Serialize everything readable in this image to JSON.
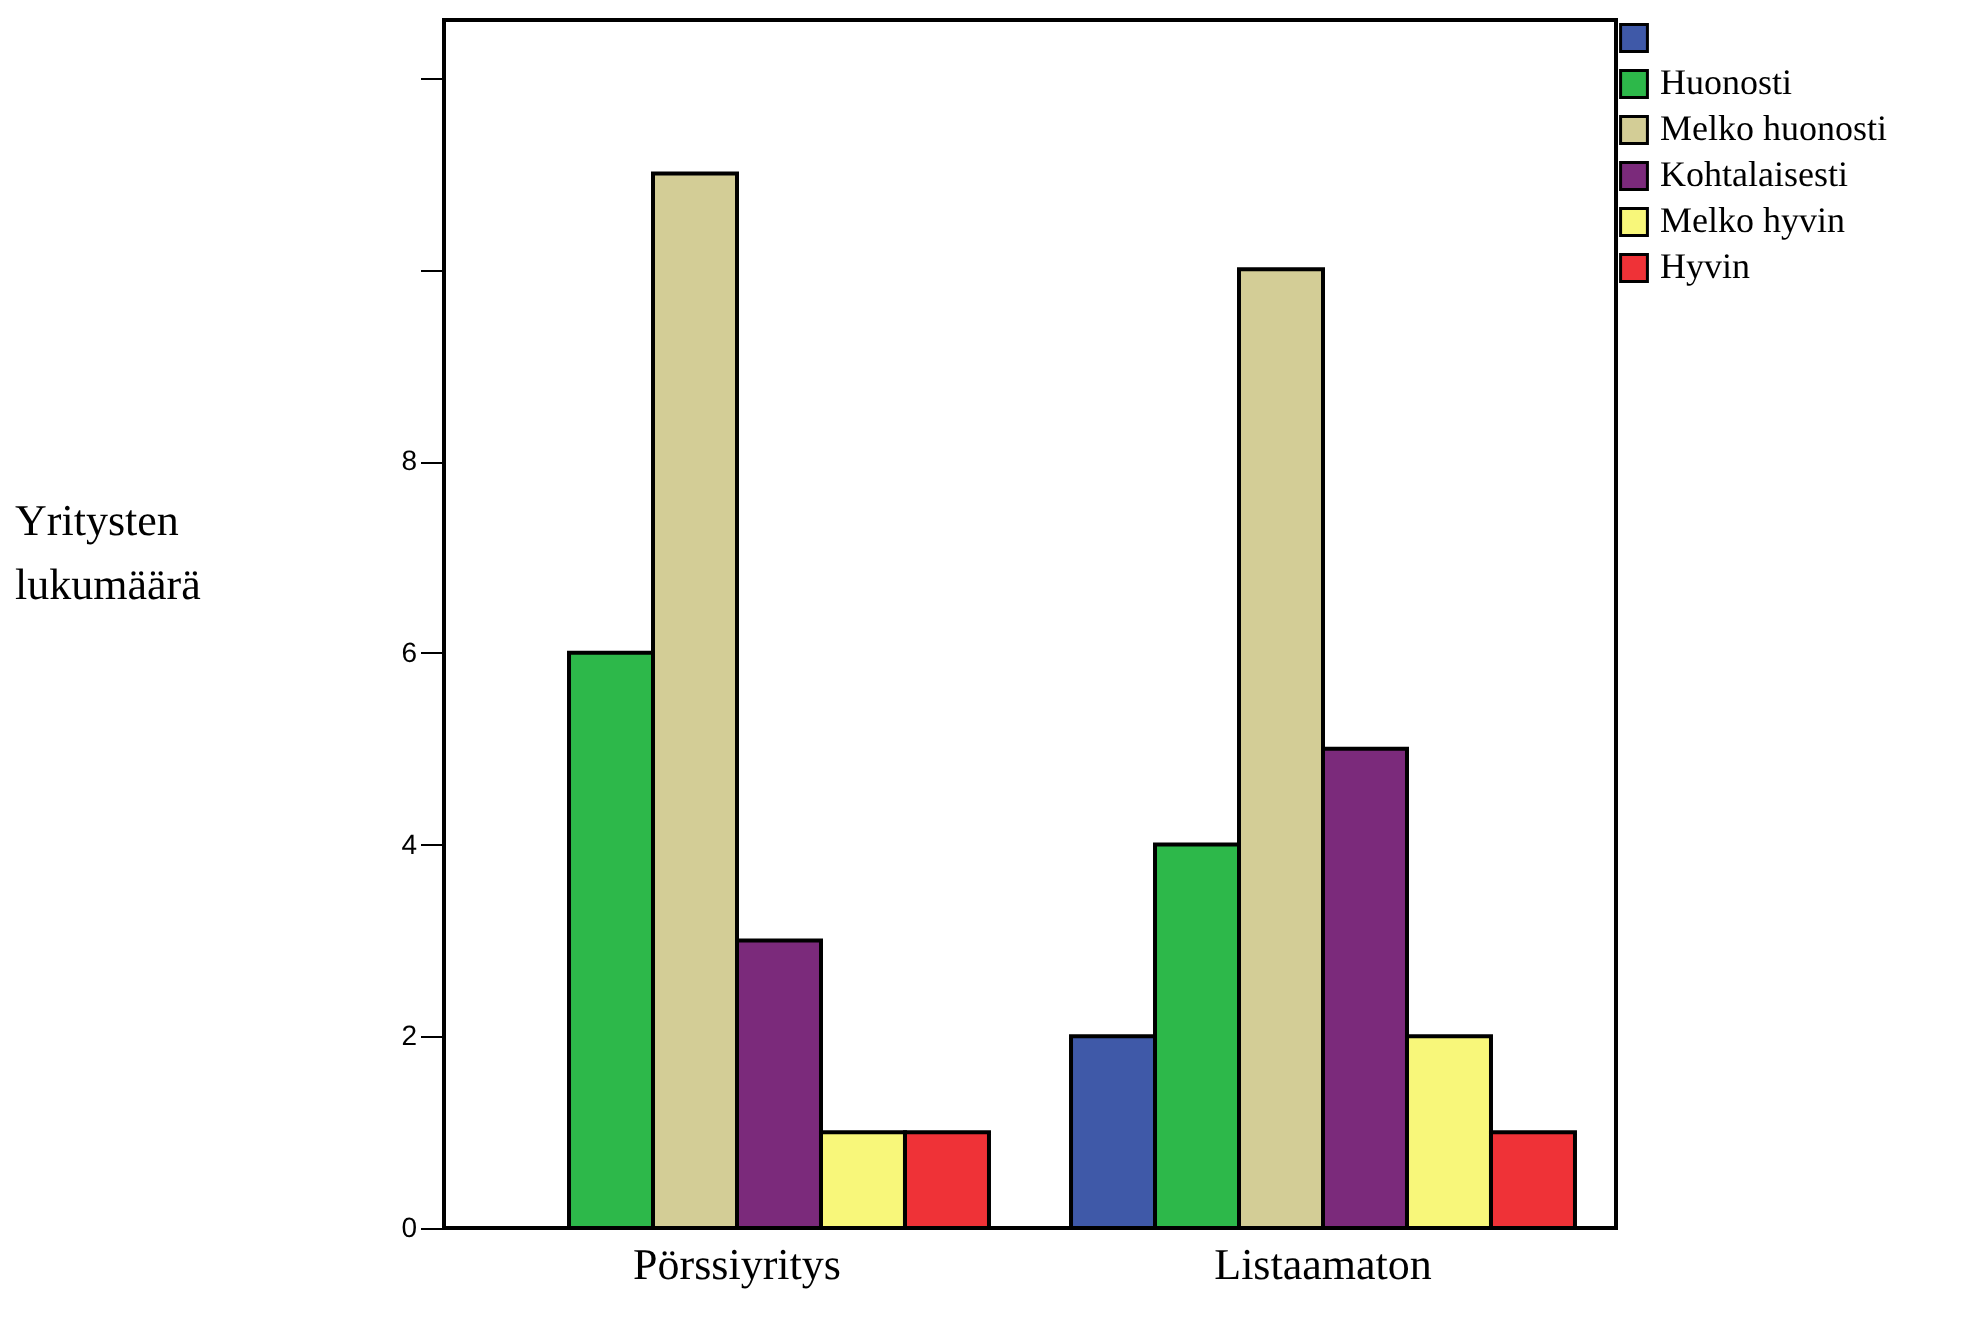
{
  "chart_data": {
    "type": "bar",
    "ylabel": "Yritysten lukumäärä",
    "categories": [
      "Pörssiyritys",
      "Listaamaton"
    ],
    "series": [
      {
        "color": "#3f59a8",
        "values": [
          null,
          2
        ]
      },
      {
        "name": "Huonosti",
        "color": "#2db84a",
        "values": [
          6,
          4
        ]
      },
      {
        "name": "Melko huonosti",
        "color": "#d3cd96",
        "values": [
          11,
          10
        ]
      },
      {
        "name": "Kohtalaisesti",
        "color": "#7b2a7b",
        "values": [
          3,
          5
        ]
      },
      {
        "name": "Melko hyvin",
        "color": "#f8f77a",
        "values": [
          1,
          2
        ]
      },
      {
        "name": "Hyvin",
        "color": "#ef3237",
        "values": [
          1,
          1
        ]
      }
    ],
    "ylim": [
      0,
      12.6
    ],
    "yticks": [
      0,
      2,
      4,
      6,
      8,
      {
        "value": 10,
        "label": null
      },
      {
        "value": 12,
        "label": null
      }
    ],
    "grid": false,
    "legend": "top right"
  }
}
